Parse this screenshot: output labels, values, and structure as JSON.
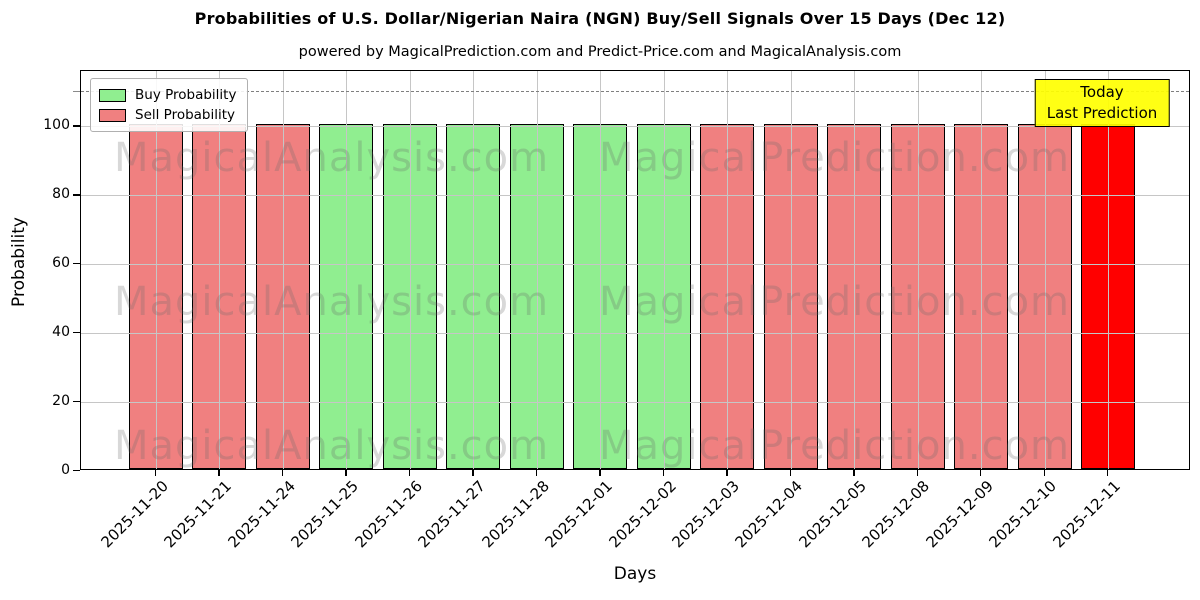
{
  "chart_data": {
    "type": "bar",
    "title": "Probabilities of U.S. Dollar/Nigerian Naira (NGN) Buy/Sell Signals Over 15 Days (Dec 12)",
    "subtitle": "powered by MagicalPrediction.com and Predict-Price.com and MagicalAnalysis.com",
    "xlabel": "Days",
    "ylabel": "Probability",
    "categories": [
      "2025-11-20",
      "2025-11-21",
      "2025-11-24",
      "2025-11-25",
      "2025-11-26",
      "2025-11-27",
      "2025-11-28",
      "2025-12-01",
      "2025-12-02",
      "2025-12-03",
      "2025-12-04",
      "2025-12-05",
      "2025-12-08",
      "2025-12-09",
      "2025-12-10",
      "2025-12-11"
    ],
    "values": [
      100,
      100,
      100,
      100,
      100,
      100,
      100,
      100,
      100,
      100,
      100,
      100,
      100,
      100,
      100,
      100
    ],
    "signals": [
      "sell",
      "sell",
      "sell",
      "buy",
      "buy",
      "buy",
      "buy",
      "buy",
      "buy",
      "sell",
      "sell",
      "sell",
      "sell",
      "sell",
      "sell",
      "today"
    ],
    "yticks": [
      0,
      20,
      40,
      60,
      80,
      100
    ],
    "ylim": [
      0,
      116
    ],
    "dashed_line_y": 110,
    "grid": true,
    "legend": {
      "position": "upper left",
      "entries": [
        {
          "label": "Buy Probability",
          "color": "#90EE90"
        },
        {
          "label": "Sell Probability",
          "color": "#F08080"
        }
      ]
    },
    "colors": {
      "buy": "#90EE90",
      "sell": "#F08080",
      "today": "#FF0000",
      "bar_edge": "#000000",
      "grid": "#c6c6c6",
      "dashed_line": "#7f7f7f",
      "annotation_bg": "#FFFF00",
      "annotation_border": "#000000",
      "watermark": "rgba(105,105,105,0.26)"
    },
    "annotation": {
      "lines": [
        "Today",
        "Last Prediction"
      ]
    },
    "watermarks": {
      "left": "MagicalAnalysis.com",
      "right": "MagicalPrediction.com"
    }
  }
}
